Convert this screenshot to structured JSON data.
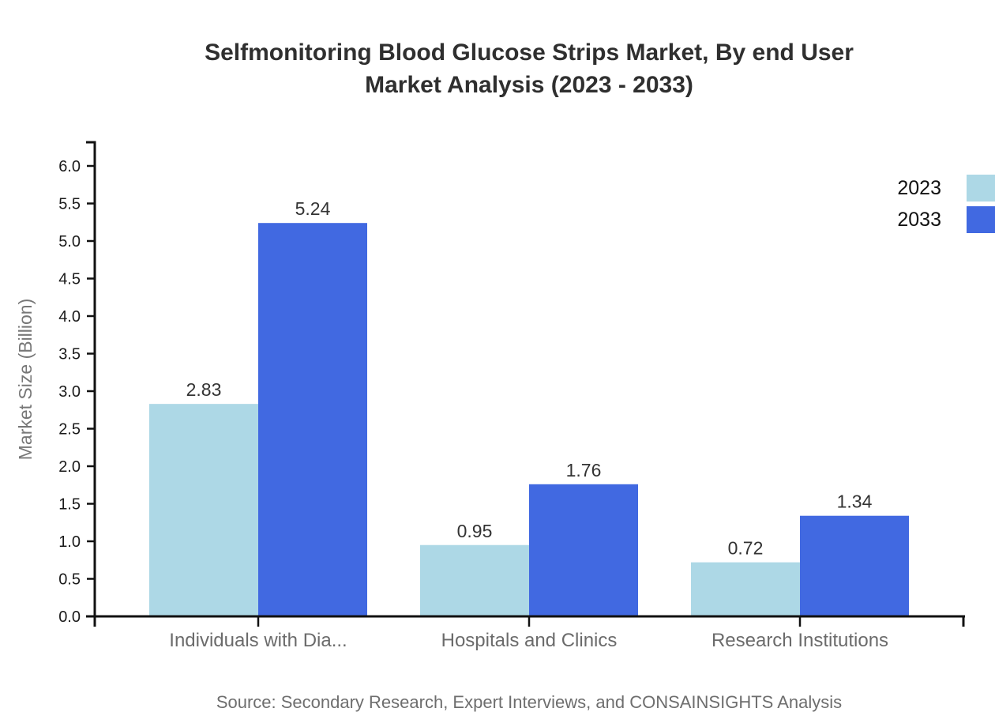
{
  "title": {
    "line1": "Selfmonitoring Blood Glucose Strips Market, By end User",
    "line2": "Market Analysis (2023 - 2033)"
  },
  "source": {
    "text": "Source: Secondary Research, Expert Interviews, and CONSAINSIGHTS Analysis"
  },
  "legend": {
    "position": "top-right",
    "items": [
      {
        "label": "2023",
        "color": "#ADD8E6"
      },
      {
        "label": "2033",
        "color": "#4169E1"
      }
    ]
  },
  "chart_data": {
    "type": "bar",
    "title": "Selfmonitoring Blood Glucose Strips Market, By end User Market Analysis (2023 - 2033)",
    "categories": [
      "Individuals with Dia...",
      "Hospitals and Clinics",
      "Research Institutions"
    ],
    "series": [
      {
        "name": "2023",
        "color": "#ADD8E6",
        "values": [
          2.83,
          0.95,
          0.72
        ]
      },
      {
        "name": "2033",
        "color": "#4169E1",
        "values": [
          5.24,
          1.76,
          1.34
        ]
      }
    ],
    "xlabel": "",
    "ylabel": "Market Size (Billion)",
    "ylim": [
      0.0,
      6.0
    ],
    "ytick_step": 0.5,
    "ytick_labels": [
      "0.0",
      "0.5",
      "1.0",
      "1.5",
      "2.0",
      "2.5",
      "3.0",
      "3.5",
      "4.0",
      "4.5",
      "5.0",
      "5.5",
      "6.0"
    ],
    "grid": false,
    "value_labels": [
      "2.83",
      "5.24",
      "0.95",
      "1.76",
      "0.72",
      "1.34"
    ],
    "legend_position": "top-right"
  },
  "colors": {
    "background": "#ffffff",
    "bar_2023": "#ADD8E6",
    "bar_2033": "#4169E1",
    "axis": "#111111",
    "title_text": "#2f2f2f",
    "value_label": "#333333",
    "tick_label": "#1a1a1a",
    "category_label": "#6b6b6b",
    "axis_title": "#777777",
    "source_text": "#6e6e6e",
    "legend_text": "#111111"
  }
}
